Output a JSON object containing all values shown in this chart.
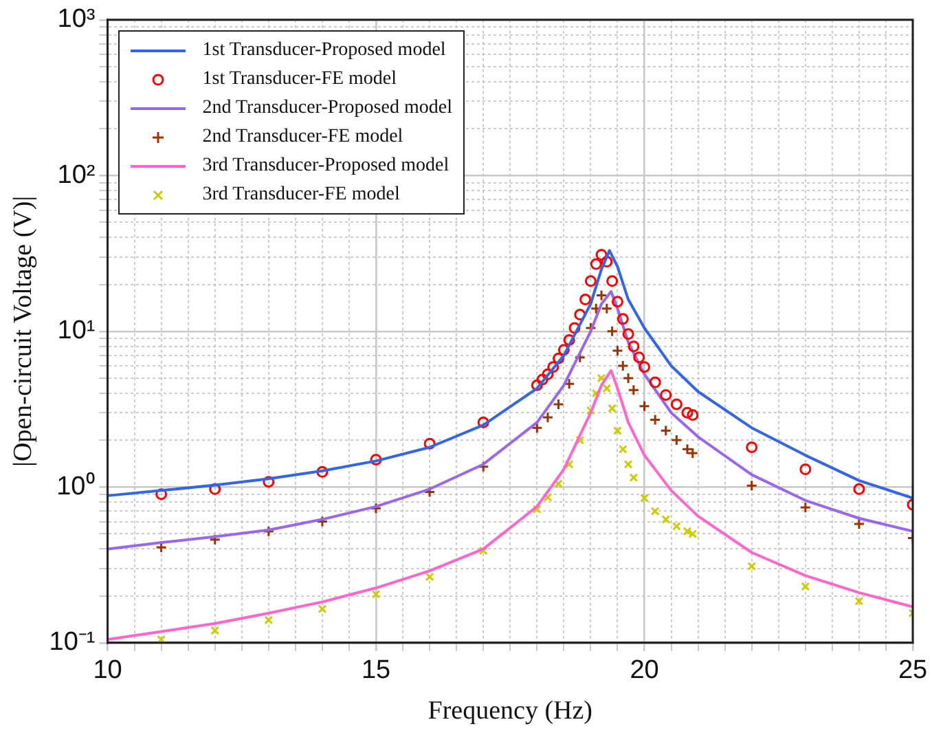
{
  "chart_data": {
    "type": "line",
    "xlabel": "Frequency (Hz)",
    "ylabel": "|Open-circuit Voltage (V)|",
    "log": "y",
    "grid": true,
    "legend": "top left",
    "xlim": [
      10,
      25
    ],
    "xticks": [
      10,
      {
        "value": 10.5,
        "label": null
      },
      {
        "value": 11,
        "label": null
      },
      {
        "value": 11.5,
        "label": null
      },
      {
        "value": 12,
        "label": null
      },
      {
        "value": 12.5,
        "label": null
      },
      {
        "value": 13,
        "label": null
      },
      {
        "value": 13.5,
        "label": null
      },
      {
        "value": 14,
        "label": null
      },
      {
        "value": 14.5,
        "label": null
      },
      15,
      {
        "value": 15.5,
        "label": null
      },
      {
        "value": 16,
        "label": null
      },
      {
        "value": 16.5,
        "label": null
      },
      {
        "value": 17,
        "label": null
      },
      {
        "value": 17.5,
        "label": null
      },
      {
        "value": 18,
        "label": null
      },
      {
        "value": 18.5,
        "label": null
      },
      {
        "value": 19,
        "label": null
      },
      {
        "value": 19.5,
        "label": null
      },
      20,
      {
        "value": 20.5,
        "label": null
      },
      {
        "value": 21,
        "label": null
      },
      {
        "value": 21.5,
        "label": null
      },
      {
        "value": 22,
        "label": null
      },
      {
        "value": 22.5,
        "label": null
      },
      {
        "value": 23,
        "label": null
      },
      {
        "value": 23.5,
        "label": null
      },
      {
        "value": 24,
        "label": null
      },
      {
        "value": 24.5,
        "label": null
      },
      25
    ],
    "ylim": [
      0.1,
      1000
    ],
    "yticks": [
      {
        "value": 0.1,
        "label": "10⁻¹"
      },
      {
        "value": 0.2,
        "label": null
      },
      {
        "value": 0.3,
        "label": null
      },
      {
        "value": 0.4,
        "label": null
      },
      {
        "value": 0.5,
        "label": null
      },
      {
        "value": 0.6,
        "label": null
      },
      {
        "value": 0.7,
        "label": null
      },
      {
        "value": 0.8,
        "label": null
      },
      {
        "value": 0.9,
        "label": null
      },
      {
        "value": 1,
        "label": "10⁰"
      },
      {
        "value": 2,
        "label": null
      },
      {
        "value": 3,
        "label": null
      },
      {
        "value": 4,
        "label": null
      },
      {
        "value": 5,
        "label": null
      },
      {
        "value": 6,
        "label": null
      },
      {
        "value": 7,
        "label": null
      },
      {
        "value": 8,
        "label": null
      },
      {
        "value": 9,
        "label": null
      },
      {
        "value": 10,
        "label": "10¹"
      },
      {
        "value": 20,
        "label": null
      },
      {
        "value": 30,
        "label": null
      },
      {
        "value": 40,
        "label": null
      },
      {
        "value": 50,
        "label": null
      },
      {
        "value": 60,
        "label": null
      },
      {
        "value": 70,
        "label": null
      },
      {
        "value": 80,
        "label": null
      },
      {
        "value": 90,
        "label": null
      },
      {
        "value": 100,
        "label": "10²"
      },
      {
        "value": 200,
        "label": null
      },
      {
        "value": 300,
        "label": null
      },
      {
        "value": 400,
        "label": null
      },
      {
        "value": 500,
        "label": null
      },
      {
        "value": 600,
        "label": null
      },
      {
        "value": 700,
        "label": null
      },
      {
        "value": 800,
        "label": null
      },
      {
        "value": 900,
        "label": null
      },
      {
        "value": 1000,
        "label": "10³"
      }
    ],
    "series": [
      {
        "name": "1st Transducer-Proposed model",
        "type": "line",
        "marker": "none",
        "color": "#3366e6",
        "x": [
          10,
          11,
          12,
          13,
          14,
          15,
          16,
          17,
          18,
          18.5,
          19,
          19.2,
          19.35,
          19.5,
          19.7,
          20,
          20.5,
          21,
          22,
          23,
          24,
          25
        ],
        "values": [
          0.88,
          0.95,
          1.03,
          1.13,
          1.27,
          1.47,
          1.8,
          2.5,
          4.3,
          7,
          15,
          25,
          33,
          26,
          16,
          10.5,
          6,
          4.1,
          2.4,
          1.6,
          1.1,
          0.85
        ]
      },
      {
        "name": "1st Transducer-FE model",
        "type": "scatter",
        "marker": "circle",
        "color": "#ff0000",
        "x": [
          11,
          12,
          13,
          14,
          15,
          16,
          17,
          18,
          18.1,
          18.2,
          18.3,
          18.4,
          18.5,
          18.6,
          18.7,
          18.8,
          18.9,
          19,
          19.1,
          19.2,
          19.3,
          19.4,
          19.5,
          19.6,
          19.7,
          19.8,
          19.9,
          20,
          20.2,
          20.4,
          20.6,
          20.8,
          20.9,
          22,
          23,
          24,
          25
        ],
        "values": [
          0.9,
          0.97,
          1.08,
          1.25,
          1.5,
          1.9,
          2.6,
          4.5,
          4.9,
          5.3,
          5.9,
          6.7,
          7.6,
          8.8,
          10.5,
          12.8,
          16,
          21,
          27,
          31,
          28,
          21,
          15.5,
          12,
          9.6,
          8,
          6.8,
          5.9,
          4.7,
          3.9,
          3.4,
          3,
          2.9,
          1.8,
          1.3,
          0.97,
          0.77
        ]
      },
      {
        "name": "2nd Transducer-Proposed model",
        "type": "line",
        "marker": "none",
        "color": "#9966ee",
        "x": [
          10,
          11,
          12,
          13,
          14,
          15,
          16,
          17,
          18,
          18.5,
          19,
          19.2,
          19.38,
          19.5,
          19.7,
          20,
          20.5,
          21,
          22,
          23,
          24,
          25
        ],
        "values": [
          0.4,
          0.44,
          0.48,
          0.53,
          0.62,
          0.75,
          0.97,
          1.4,
          2.6,
          4.5,
          10,
          15,
          18,
          14,
          8.5,
          5.3,
          3,
          2.1,
          1.2,
          0.82,
          0.63,
          0.52
        ]
      },
      {
        "name": "2nd Transducer-FE model",
        "type": "scatter",
        "marker": "cross",
        "color": "#993300",
        "x": [
          11,
          12,
          13,
          14,
          15,
          16,
          17,
          18,
          18.2,
          18.4,
          18.6,
          18.8,
          19,
          19.1,
          19.2,
          19.3,
          19.4,
          19.5,
          19.6,
          19.7,
          19.8,
          20,
          20.2,
          20.4,
          20.6,
          20.8,
          20.9,
          22,
          23,
          24,
          25
        ],
        "values": [
          0.41,
          0.46,
          0.52,
          0.6,
          0.73,
          0.93,
          1.35,
          2.4,
          2.8,
          3.4,
          4.6,
          6.8,
          10.5,
          14,
          17,
          14,
          10,
          7.5,
          6,
          5,
          4.2,
          3.3,
          2.7,
          2.3,
          2,
          1.75,
          1.65,
          1.02,
          0.74,
          0.58,
          0.47
        ]
      },
      {
        "name": "3rd Transducer-Proposed model",
        "type": "line",
        "marker": "none",
        "color": "#ff66cc",
        "x": [
          10,
          11,
          12,
          13,
          14,
          15,
          16,
          17,
          18,
          18.5,
          19,
          19.2,
          19.38,
          19.5,
          19.7,
          20,
          20.5,
          21,
          22,
          23,
          24,
          25
        ],
        "values": [
          0.105,
          0.118,
          0.133,
          0.155,
          0.183,
          0.225,
          0.29,
          0.4,
          0.75,
          1.3,
          3,
          4.5,
          5.6,
          4.3,
          2.6,
          1.6,
          0.95,
          0.65,
          0.38,
          0.27,
          0.21,
          0.17
        ]
      },
      {
        "name": "3rd Transducer-FE model",
        "type": "scatter",
        "marker": "x",
        "color": "#cccc00",
        "x": [
          11,
          12,
          13,
          14,
          15,
          16,
          17,
          18,
          18.2,
          18.4,
          18.6,
          18.8,
          19,
          19.1,
          19.2,
          19.3,
          19.4,
          19.5,
          19.6,
          19.7,
          19.8,
          20,
          20.2,
          20.4,
          20.6,
          20.8,
          20.9,
          22,
          23,
          24,
          25
        ],
        "values": [
          0.105,
          0.12,
          0.14,
          0.165,
          0.205,
          0.265,
          0.39,
          0.72,
          0.86,
          1.05,
          1.4,
          2,
          3.1,
          4,
          5,
          4.3,
          3.2,
          2.3,
          1.75,
          1.4,
          1.15,
          0.85,
          0.7,
          0.62,
          0.56,
          0.52,
          0.5,
          0.31,
          0.23,
          0.185,
          0.155
        ]
      }
    ]
  }
}
